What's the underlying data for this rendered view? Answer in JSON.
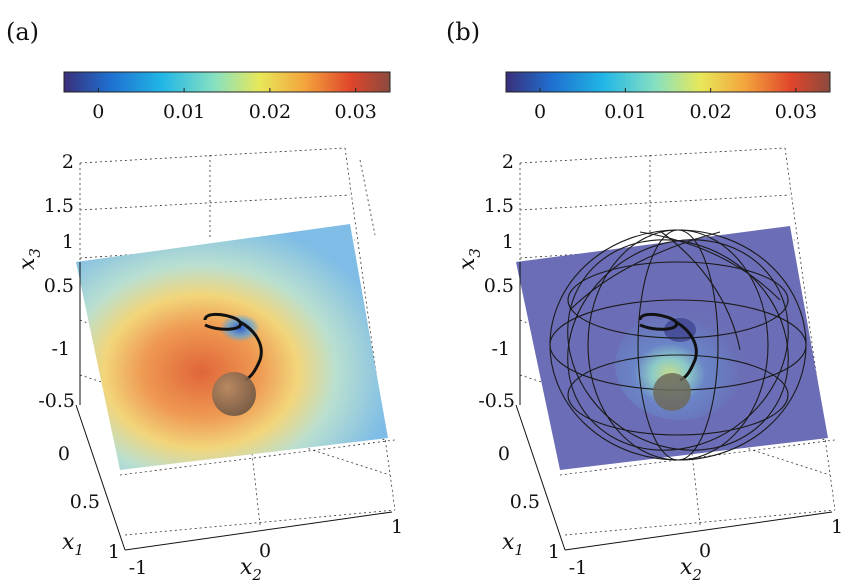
{
  "chart_data": [
    {
      "type": "heatmap",
      "panel_label": "(a)",
      "colorbar": {
        "ticks": [
          "0",
          "0.01",
          "0.02",
          "0.03"
        ],
        "tick_values": [
          0,
          0.01,
          0.02,
          0.03
        ],
        "range": [
          -0.004,
          0.034
        ],
        "colors": [
          "#3a2f7a",
          "#1f6fd0",
          "#21b6e6",
          "#86e0c2",
          "#e8e85a",
          "#f3a33c",
          "#e0452b",
          "#8a4a3e"
        ]
      },
      "axes": {
        "x1": {
          "label": "x",
          "sub": "1",
          "ticks": [
            "-1",
            "-0.5",
            "0",
            "0.5",
            "1"
          ]
        },
        "x2": {
          "label": "x",
          "sub": "2",
          "ticks": [
            "-1",
            "0",
            "1"
          ]
        },
        "x3": {
          "label": "x",
          "sub": "3",
          "ticks": [
            "0.5",
            "1",
            "1.5",
            "2"
          ]
        }
      },
      "overlay": "none"
    },
    {
      "type": "heatmap",
      "panel_label": "(b)",
      "colorbar": {
        "ticks": [
          "0",
          "0.01",
          "0.02",
          "0.03"
        ],
        "tick_values": [
          0,
          0.01,
          0.02,
          0.03
        ],
        "range": [
          -0.004,
          0.034
        ],
        "colors": [
          "#3a2f7a",
          "#1f6fd0",
          "#21b6e6",
          "#86e0c2",
          "#e8e85a",
          "#f3a33c",
          "#e0452b",
          "#8a4a3e"
        ]
      },
      "axes": {
        "x1": {
          "label": "x",
          "sub": "1",
          "ticks": [
            "-1",
            "-0.5",
            "0",
            "0.5",
            "1"
          ]
        },
        "x2": {
          "label": "x",
          "sub": "2",
          "ticks": [
            "-1",
            "0",
            "1"
          ]
        },
        "x3": {
          "label": "x",
          "sub": "3",
          "ticks": [
            "0.5",
            "1",
            "1.5",
            "2"
          ]
        }
      },
      "overlay": "wireframe-sphere"
    }
  ]
}
